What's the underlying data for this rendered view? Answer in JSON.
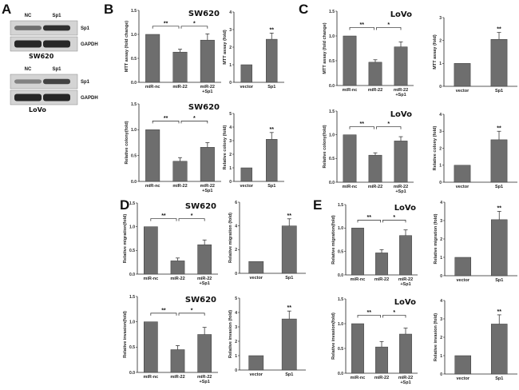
{
  "panel_labels": [
    "A",
    "B",
    "C",
    "D",
    "E"
  ],
  "blots": [
    {
      "cell_line": "SW620",
      "lanes": [
        "NC",
        "Sp1"
      ],
      "rows": [
        "Sp1",
        "GAPDH"
      ],
      "sp1_intensity": [
        0.55,
        0.9
      ]
    },
    {
      "cell_line": "LoVo",
      "lanes": [
        "NC",
        "Sp1"
      ],
      "rows": [
        "Sp1",
        "GAPDH"
      ],
      "sp1_intensity": [
        0.45,
        0.8
      ]
    }
  ],
  "chart_data": [
    {
      "panel": "B",
      "type": "bar",
      "title": "SW620",
      "ylabel": "MTT assay (fold change)",
      "categories": [
        "miR-nc",
        "miR-22",
        "miR-22 +Sp1"
      ],
      "values": [
        1.0,
        0.63,
        0.88
      ],
      "errors": [
        0,
        0.06,
        0.13
      ],
      "ylim": [
        0,
        1.5
      ],
      "yticks": [
        "0.0",
        "0.5",
        "1.0",
        "1.5"
      ],
      "significance": [
        {
          "between": [
            0,
            1
          ],
          "label": "**"
        },
        {
          "between": [
            1,
            2
          ],
          "label": "*"
        }
      ]
    },
    {
      "panel": "B",
      "type": "bar",
      "title": "",
      "ylabel": "MTT assay (fold)",
      "categories": [
        "vector",
        "Sp1"
      ],
      "values": [
        1.0,
        2.45
      ],
      "errors": [
        0,
        0.35
      ],
      "ylim": [
        0,
        4
      ],
      "yticks": [
        "0",
        "1",
        "2",
        "3",
        "4"
      ],
      "significance": [
        {
          "bar": 1,
          "label": "**"
        }
      ]
    },
    {
      "panel": "B",
      "type": "bar",
      "title": "SW620",
      "ylabel": "Relative colony(fold)",
      "categories": [
        "miR-nc",
        "miR-22",
        "miR-22 +Sp1"
      ],
      "values": [
        1.0,
        0.39,
        0.66
      ],
      "errors": [
        0,
        0.07,
        0.09
      ],
      "ylim": [
        0,
        1.5
      ],
      "yticks": [
        "0.0",
        "0.5",
        "1.0",
        "1.5"
      ],
      "significance": [
        {
          "between": [
            0,
            1
          ],
          "label": "**"
        },
        {
          "between": [
            1,
            2
          ],
          "label": "*"
        }
      ]
    },
    {
      "panel": "B",
      "type": "bar",
      "title": "",
      "ylabel": "Relative colony (fold)",
      "categories": [
        "vector",
        "Sp1"
      ],
      "values": [
        1.0,
        3.1
      ],
      "errors": [
        0,
        0.5
      ],
      "ylim": [
        0,
        5
      ],
      "yticks": [
        "0",
        "1",
        "2",
        "3",
        "4",
        "5"
      ],
      "significance": [
        {
          "bar": 1,
          "label": "**"
        }
      ]
    },
    {
      "panel": "C",
      "type": "bar",
      "title": "LoVo",
      "ylabel": "MTT assay (fold change)",
      "categories": [
        "miR-nc",
        "miR-22",
        "miR-22 +Sp1"
      ],
      "values": [
        1.0,
        0.47,
        0.78
      ],
      "errors": [
        0,
        0.05,
        0.1
      ],
      "ylim": [
        0,
        1.5
      ],
      "yticks": [
        "0.0",
        "0.5",
        "1.0",
        "1.5"
      ],
      "significance": [
        {
          "between": [
            0,
            1
          ],
          "label": "**"
        },
        {
          "between": [
            1,
            2
          ],
          "label": "*"
        }
      ]
    },
    {
      "panel": "C",
      "type": "bar",
      "title": "",
      "ylabel": "MTT assay (fold)",
      "categories": [
        "vector",
        "Sp1"
      ],
      "values": [
        1.0,
        2.05
      ],
      "errors": [
        0,
        0.3
      ],
      "ylim": [
        0,
        3
      ],
      "yticks": [
        "0",
        "1",
        "2",
        "3"
      ],
      "significance": [
        {
          "bar": 1,
          "label": "**"
        }
      ]
    },
    {
      "panel": "C",
      "type": "bar",
      "title": "LoVo",
      "ylabel": "Relative colony(fold)",
      "categories": [
        "miR-nc",
        "miR-22",
        "miR-22 +Sp1"
      ],
      "values": [
        1.0,
        0.57,
        0.87
      ],
      "errors": [
        0,
        0.05,
        0.09
      ],
      "ylim": [
        0,
        1.5
      ],
      "yticks": [
        "0.0",
        "0.5",
        "1.0",
        "1.5"
      ],
      "significance": [
        {
          "between": [
            0,
            1
          ],
          "label": "**"
        },
        {
          "between": [
            1,
            2
          ],
          "label": "*"
        }
      ]
    },
    {
      "panel": "C",
      "type": "bar",
      "title": "",
      "ylabel": "Relative colony (fold)",
      "categories": [
        "vector",
        "Sp1"
      ],
      "values": [
        1.0,
        2.5
      ],
      "errors": [
        0,
        0.5
      ],
      "ylim": [
        0,
        4
      ],
      "yticks": [
        "0",
        "1",
        "2",
        "3",
        "4"
      ],
      "significance": [
        {
          "bar": 1,
          "label": "**"
        }
      ]
    },
    {
      "panel": "D",
      "type": "bar",
      "title": "SW620",
      "ylabel": "Relative migration(fold)",
      "categories": [
        "miR-nc",
        "miR-22",
        "miR-22 +Sp1"
      ],
      "values": [
        1.0,
        0.28,
        0.62
      ],
      "errors": [
        0,
        0.06,
        0.1
      ],
      "ylim": [
        0,
        1.5
      ],
      "yticks": [
        "0.0",
        "0.5",
        "1.0",
        "1.5"
      ],
      "significance": [
        {
          "between": [
            0,
            1
          ],
          "label": "**"
        },
        {
          "between": [
            1,
            2
          ],
          "label": "*"
        }
      ]
    },
    {
      "panel": "D",
      "type": "bar",
      "title": "",
      "ylabel": "Relative migration (fold)",
      "categories": [
        "vector",
        "Sp1"
      ],
      "values": [
        1.0,
        4.0
      ],
      "errors": [
        0,
        0.6
      ],
      "ylim": [
        0,
        6
      ],
      "yticks": [
        "0",
        "2",
        "4",
        "6"
      ],
      "significance": [
        {
          "bar": 1,
          "label": "**"
        }
      ]
    },
    {
      "panel": "D",
      "type": "bar",
      "title": "SW620",
      "ylabel": "Relative invasion(fold)",
      "categories": [
        "miR-nc",
        "miR-22",
        "miR-22 +Sp1"
      ],
      "values": [
        1.0,
        0.45,
        0.75
      ],
      "errors": [
        0,
        0.08,
        0.14
      ],
      "ylim": [
        0,
        1.5
      ],
      "yticks": [
        "0.0",
        "0.5",
        "1.0",
        "1.5"
      ],
      "significance": [
        {
          "between": [
            0,
            1
          ],
          "label": "**"
        },
        {
          "between": [
            1,
            2
          ],
          "label": "*"
        }
      ]
    },
    {
      "panel": "D",
      "type": "bar",
      "title": "",
      "ylabel": "Relative invasion (fold)",
      "categories": [
        "vector",
        "Sp1"
      ],
      "values": [
        1.0,
        3.55
      ],
      "errors": [
        0,
        0.55
      ],
      "ylim": [
        0,
        5
      ],
      "yticks": [
        "0",
        "1",
        "2",
        "3",
        "4",
        "5"
      ],
      "significance": [
        {
          "bar": 1,
          "label": "**"
        }
      ]
    },
    {
      "panel": "E",
      "type": "bar",
      "title": "LoVo",
      "ylabel": "Relative migration(fold)",
      "categories": [
        "miR-nc",
        "miR-22",
        "miR-22 +Sp1"
      ],
      "values": [
        1.0,
        0.47,
        0.84
      ],
      "errors": [
        0,
        0.07,
        0.12
      ],
      "ylim": [
        0,
        1.5
      ],
      "yticks": [
        "0.0",
        "0.5",
        "1.0",
        "1.5"
      ],
      "significance": [
        {
          "between": [
            0,
            1
          ],
          "label": "**"
        },
        {
          "between": [
            1,
            2
          ],
          "label": "*"
        }
      ]
    },
    {
      "panel": "E",
      "type": "bar",
      "title": "",
      "ylabel": "Relative migration (fold)",
      "categories": [
        "vector",
        "Sp1"
      ],
      "values": [
        1.0,
        3.05
      ],
      "errors": [
        0,
        0.45
      ],
      "ylim": [
        0,
        4
      ],
      "yticks": [
        "0",
        "1",
        "2",
        "3",
        "4"
      ],
      "significance": [
        {
          "bar": 1,
          "label": "**"
        }
      ]
    },
    {
      "panel": "E",
      "type": "bar",
      "title": "LoVo",
      "ylabel": "Relative invasion(fold)",
      "categories": [
        "miR-nc",
        "miR-22",
        "miR-22 +Sp1"
      ],
      "values": [
        1.0,
        0.53,
        0.79
      ],
      "errors": [
        0,
        0.11,
        0.12
      ],
      "ylim": [
        0,
        1.5
      ],
      "yticks": [
        "0.0",
        "0.5",
        "1.0",
        "1.5"
      ],
      "significance": [
        {
          "between": [
            0,
            1
          ],
          "label": "**"
        },
        {
          "between": [
            1,
            2
          ],
          "label": "*"
        }
      ]
    },
    {
      "panel": "E",
      "type": "bar",
      "title": "",
      "ylabel": "Relative invasion (fold)",
      "categories": [
        "vector",
        "Sp1"
      ],
      "values": [
        1.0,
        2.72
      ],
      "errors": [
        0,
        0.5
      ],
      "ylim": [
        0,
        4
      ],
      "yticks": [
        "0",
        "1",
        "2",
        "3",
        "4"
      ],
      "significance": [
        {
          "bar": 1,
          "label": "**"
        }
      ]
    }
  ],
  "colors": {
    "bar": "#6e6e6e",
    "bar_edge": "#3a3a3a",
    "axis": "#222222",
    "blot_bg": "#d4d4d4",
    "band": "#1e1e1e"
  }
}
